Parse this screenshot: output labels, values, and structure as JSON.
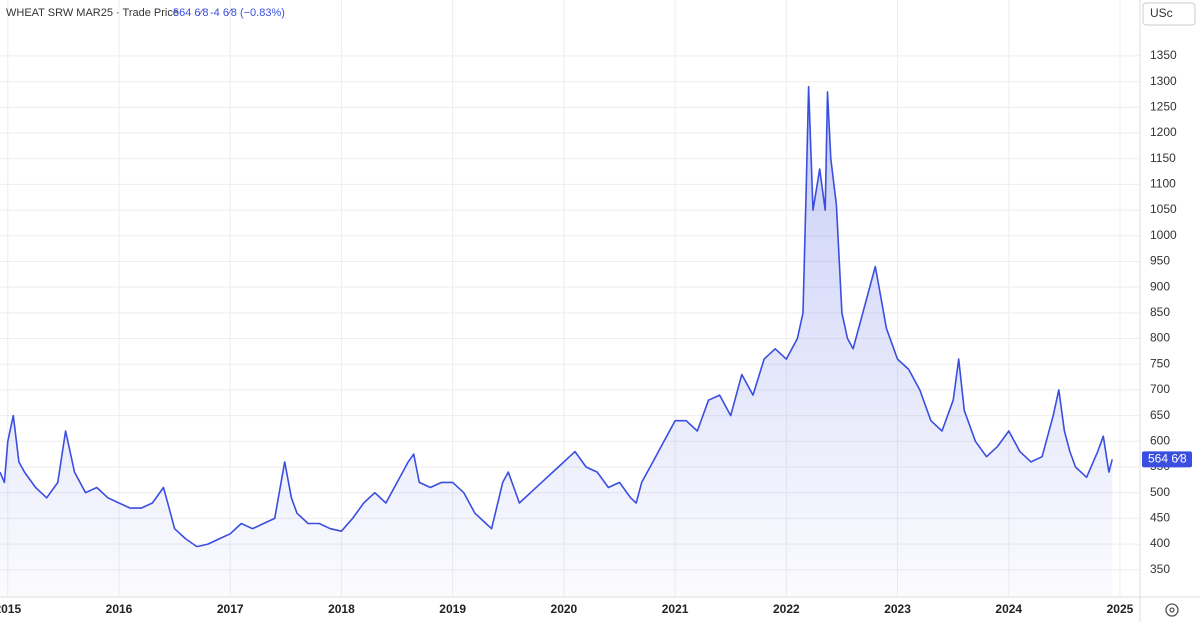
{
  "header": {
    "instrument": "WHEAT SRW MAR25 · Trade Price",
    "price": "564 6⁄8",
    "change": "-4 6⁄8 (−0.83%)",
    "currency": "USc"
  },
  "chart_data": {
    "type": "area",
    "color": "#3a4ee0",
    "grid": true,
    "xlim": [
      2014.93,
      2025.18
    ],
    "xticks": [
      2015,
      2016,
      2017,
      2018,
      2019,
      2020,
      2021,
      2022,
      2023,
      2024,
      2025
    ],
    "ylim": [
      297,
      1416
    ],
    "yticks": [
      350,
      400,
      450,
      500,
      550,
      600,
      650,
      700,
      750,
      800,
      850,
      900,
      950,
      1000,
      1050,
      1100,
      1150,
      1200,
      1250,
      1300,
      1350
    ],
    "x": [
      2014.93,
      2014.97,
      2015.0,
      2015.05,
      2015.1,
      2015.15,
      2015.25,
      2015.35,
      2015.45,
      2015.52,
      2015.6,
      2015.7,
      2015.8,
      2015.9,
      2016.0,
      2016.1,
      2016.2,
      2016.3,
      2016.4,
      2016.45,
      2016.5,
      2016.6,
      2016.7,
      2016.8,
      2016.9,
      2017.0,
      2017.1,
      2017.2,
      2017.3,
      2017.4,
      2017.49,
      2017.55,
      2017.6,
      2017.7,
      2017.8,
      2017.9,
      2018.0,
      2018.1,
      2018.2,
      2018.3,
      2018.4,
      2018.5,
      2018.6,
      2018.65,
      2018.7,
      2018.8,
      2018.9,
      2019.0,
      2019.1,
      2019.2,
      2019.3,
      2019.35,
      2019.45,
      2019.5,
      2019.6,
      2019.7,
      2019.8,
      2019.9,
      2020.0,
      2020.1,
      2020.2,
      2020.3,
      2020.4,
      2020.5,
      2020.6,
      2020.65,
      2020.7,
      2020.8,
      2020.9,
      2021.0,
      2021.1,
      2021.2,
      2021.3,
      2021.4,
      2021.5,
      2021.6,
      2021.7,
      2021.8,
      2021.9,
      2022.0,
      2022.1,
      2022.15,
      2022.18,
      2022.2,
      2022.24,
      2022.3,
      2022.35,
      2022.37,
      2022.4,
      2022.45,
      2022.5,
      2022.55,
      2022.6,
      2022.7,
      2022.8,
      2022.85,
      2022.9,
      2023.0,
      2023.1,
      2023.2,
      2023.3,
      2023.4,
      2023.5,
      2023.55,
      2023.6,
      2023.7,
      2023.8,
      2023.9,
      2024.0,
      2024.1,
      2024.2,
      2024.3,
      2024.4,
      2024.45,
      2024.5,
      2024.55,
      2024.6,
      2024.7,
      2024.8,
      2024.85,
      2024.9,
      2024.93
    ],
    "values": [
      540,
      520,
      600,
      650,
      560,
      540,
      510,
      490,
      520,
      620,
      540,
      500,
      510,
      490,
      480,
      470,
      470,
      480,
      510,
      470,
      430,
      410,
      395,
      400,
      410,
      420,
      440,
      430,
      440,
      450,
      560,
      490,
      460,
      440,
      440,
      430,
      425,
      450,
      480,
      500,
      480,
      520,
      560,
      575,
      520,
      510,
      520,
      520,
      500,
      460,
      440,
      430,
      520,
      540,
      480,
      500,
      520,
      540,
      560,
      580,
      550,
      540,
      510,
      520,
      490,
      480,
      520,
      560,
      600,
      640,
      640,
      620,
      680,
      690,
      650,
      730,
      690,
      760,
      780,
      760,
      800,
      850,
      1100,
      1290,
      1050,
      1130,
      1050,
      1280,
      1150,
      1060,
      850,
      800,
      780,
      860,
      940,
      880,
      820,
      760,
      740,
      700,
      640,
      620,
      680,
      760,
      660,
      600,
      570,
      590,
      620,
      580,
      560,
      570,
      650,
      700,
      620,
      580,
      550,
      530,
      580,
      610,
      540,
      564.75
    ]
  }
}
